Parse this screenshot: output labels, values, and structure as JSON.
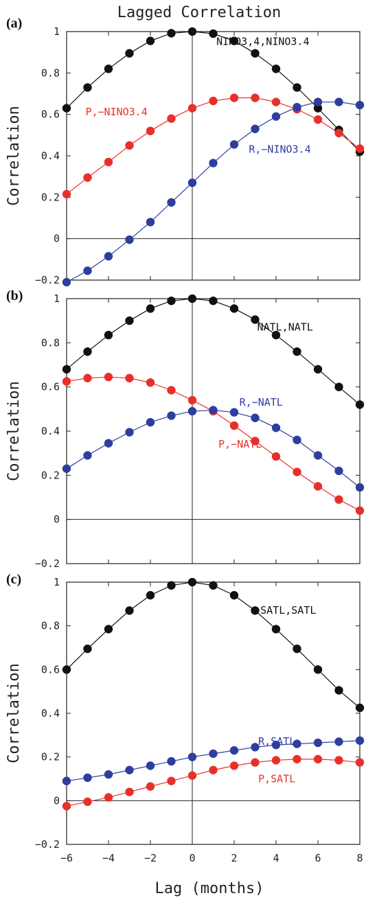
{
  "figure": {
    "title": "Lagged Correlation",
    "xlabel": "Lag (months)"
  },
  "colors": {
    "black": "#111111",
    "red": "#e8302a",
    "blue": "#2e3e9e",
    "axis": "#222222"
  },
  "chart_data": [
    {
      "type": "line",
      "panel_label": "(a)",
      "ylabel": "Correlation",
      "ylim": [
        -0.2,
        1
      ],
      "xlim": [
        -6,
        8
      ],
      "yticks": [
        -0.2,
        0,
        0.2,
        0.4,
        0.6,
        0.8,
        1
      ],
      "xticks": [
        -6,
        -4,
        -2,
        0,
        2,
        4,
        6,
        8
      ],
      "x": [
        -6,
        -5,
        -4,
        -3,
        -2,
        -1,
        0,
        1,
        2,
        3,
        4,
        5,
        6,
        7,
        8
      ],
      "series": [
        {
          "name": "NINO3.4,NINO3.4",
          "color": "black",
          "values": [
            0.63,
            0.73,
            0.82,
            0.895,
            0.955,
            0.992,
            1.0,
            0.99,
            0.955,
            0.895,
            0.82,
            0.73,
            0.63,
            0.525,
            0.42
          ]
        },
        {
          "name": "P,−NINO3.4",
          "color": "red",
          "values": [
            0.215,
            0.295,
            0.37,
            0.45,
            0.52,
            0.58,
            0.63,
            0.665,
            0.68,
            0.68,
            0.66,
            0.625,
            0.575,
            0.51,
            0.435
          ]
        },
        {
          "name": "R,−NINO3.4",
          "color": "blue",
          "values": [
            -0.21,
            -0.155,
            -0.085,
            -0.005,
            0.08,
            0.175,
            0.27,
            0.365,
            0.455,
            0.53,
            0.59,
            0.635,
            0.66,
            0.66,
            0.645
          ]
        }
      ],
      "annotations": [
        {
          "text": "NINO3,4,NINO3.4",
          "color": "black",
          "x": 1.15,
          "y": 0.935
        },
        {
          "text": "P,−NINO3.4",
          "color": "red",
          "x": -5.1,
          "y": 0.595
        },
        {
          "text": "R,−NINO3.4",
          "color": "blue",
          "x": 2.7,
          "y": 0.415
        }
      ]
    },
    {
      "type": "line",
      "panel_label": "(b)",
      "ylabel": "Correlation",
      "ylim": [
        -0.2,
        1
      ],
      "xlim": [
        -6,
        8
      ],
      "yticks": [
        -0.2,
        0,
        0.2,
        0.4,
        0.6,
        0.8,
        1
      ],
      "xticks": [
        -6,
        -4,
        -2,
        0,
        2,
        4,
        6,
        8
      ],
      "x": [
        -6,
        -5,
        -4,
        -3,
        -2,
        -1,
        0,
        1,
        2,
        3,
        4,
        5,
        6,
        7,
        8
      ],
      "series": [
        {
          "name": "NATL,NATL",
          "color": "black",
          "values": [
            0.68,
            0.76,
            0.835,
            0.9,
            0.955,
            0.99,
            1.0,
            0.99,
            0.955,
            0.905,
            0.835,
            0.76,
            0.68,
            0.6,
            0.52
          ]
        },
        {
          "name": "P,−NATL",
          "color": "red",
          "values": [
            0.625,
            0.64,
            0.645,
            0.64,
            0.62,
            0.585,
            0.54,
            0.49,
            0.425,
            0.355,
            0.285,
            0.215,
            0.15,
            0.09,
            0.04
          ]
        },
        {
          "name": "R,−NATL",
          "color": "blue",
          "values": [
            0.23,
            0.29,
            0.345,
            0.395,
            0.44,
            0.47,
            0.49,
            0.495,
            0.485,
            0.46,
            0.415,
            0.36,
            0.29,
            0.22,
            0.145
          ]
        }
      ],
      "annotations": [
        {
          "text": "NATL,NATL",
          "color": "black",
          "x": 3.1,
          "y": 0.855
        },
        {
          "text": "R,−NATL",
          "color": "blue",
          "x": 2.25,
          "y": 0.515
        },
        {
          "text": "P,−NATL",
          "color": "red",
          "x": 1.25,
          "y": 0.325
        }
      ]
    },
    {
      "type": "line",
      "panel_label": "(c)",
      "ylabel": "Correlation",
      "ylim": [
        -0.2,
        1
      ],
      "xlim": [
        -6,
        8
      ],
      "yticks": [
        -0.2,
        0,
        0.2,
        0.4,
        0.6,
        0.8,
        1
      ],
      "xticks": [
        -6,
        -4,
        -2,
        0,
        2,
        4,
        6,
        8
      ],
      "x": [
        -6,
        -5,
        -4,
        -3,
        -2,
        -1,
        0,
        1,
        2,
        3,
        4,
        5,
        6,
        7,
        8
      ],
      "series": [
        {
          "name": "SATL,SATL",
          "color": "black",
          "values": [
            0.6,
            0.695,
            0.785,
            0.87,
            0.94,
            0.985,
            1.0,
            0.985,
            0.94,
            0.87,
            0.785,
            0.695,
            0.6,
            0.505,
            0.425
          ]
        },
        {
          "name": "P,SATL",
          "color": "red",
          "values": [
            -0.025,
            -0.005,
            0.015,
            0.04,
            0.065,
            0.09,
            0.115,
            0.14,
            0.16,
            0.175,
            0.185,
            0.19,
            0.19,
            0.185,
            0.175
          ]
        },
        {
          "name": "R,SATL",
          "color": "blue",
          "values": [
            0.09,
            0.105,
            0.12,
            0.14,
            0.16,
            0.18,
            0.2,
            0.215,
            0.23,
            0.245,
            0.255,
            0.26,
            0.265,
            0.27,
            0.275
          ]
        }
      ],
      "annotations": [
        {
          "text": "SATL,SATL",
          "color": "black",
          "x": 3.25,
          "y": 0.855
        },
        {
          "text": "R,SATL",
          "color": "blue",
          "x": 3.15,
          "y": 0.255
        },
        {
          "text": "P,SATL",
          "color": "red",
          "x": 3.15,
          "y": 0.085
        }
      ]
    }
  ]
}
